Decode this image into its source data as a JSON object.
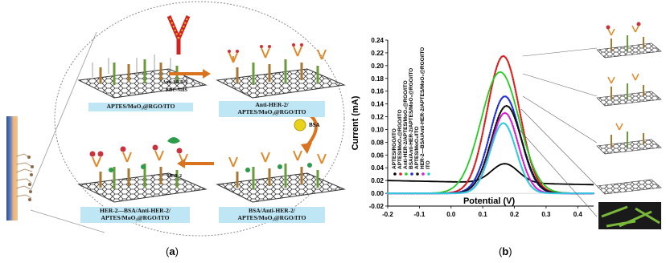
{
  "panel_a": {
    "caption_letter": "a",
    "step_labels": {
      "s1": "APTES/MoO₃@RGO/ITO",
      "s2_line1": "Anti-HER-2/",
      "s2_line2": "APTES/MoO₃@RGO/ITO",
      "s3_line1": "BSA/Anti-HER-2/",
      "s3_line2": "APTES/MoO₃@RGO/ITO",
      "s4_line1": "HER-2—BSA/Anti-HER-2/",
      "s4_line2": "APTES/MoO₃@RGO/ITO"
    },
    "arrow_labels": {
      "anti": "Anti-HER-2",
      "edc": "EDC-NHS",
      "bsa": "BSA",
      "her2": "HER-2"
    }
  },
  "panel_b": {
    "caption_letter": "b",
    "chart_data": {
      "type": "line",
      "xlabel": "Potential (V)",
      "ylabel": "Current (mA)",
      "xlim": [
        -0.2,
        0.45
      ],
      "ylim": [
        -0.02,
        0.24
      ],
      "xticks": [
        "-0.2",
        "-0.1",
        "0.0",
        "0.1",
        "0.2",
        "0.3",
        "0.4"
      ],
      "xtick_values": [
        -0.2,
        -0.1,
        0.0,
        0.1,
        0.2,
        0.3,
        0.4
      ],
      "yticks": [
        "-0.02",
        "0.00",
        "0.02",
        "0.04",
        "0.06",
        "0.08",
        "0.10",
        "0.12",
        "0.14",
        "0.16",
        "0.18",
        "0.20",
        "0.22",
        "0.24"
      ],
      "ytick_values": [
        -0.02,
        0.0,
        0.02,
        0.04,
        0.06,
        0.08,
        0.1,
        0.12,
        0.14,
        0.16,
        0.18,
        0.2,
        0.22,
        0.24
      ],
      "grid": false,
      "legend_position": "top-left",
      "series": [
        {
          "name": "APTES/RGO/ITO",
          "color": "#000000",
          "style": "solid",
          "base": 0.02,
          "peak": 0.0,
          "width": 0.06,
          "center": 0.17
        },
        {
          "name": "APTES/MoO₃@RGO/ITO",
          "color": "#dd1c1c",
          "style": "dotted",
          "base": 0.0,
          "peak": 0.215,
          "width": 0.072,
          "center": 0.165
        },
        {
          "name": "Anti-HER-2/APTES/MoO₃@RGO/ITO",
          "color": "#22cc22",
          "style": "solid",
          "base": 0.0,
          "peak": 0.19,
          "width": 0.085,
          "center": 0.155
        },
        {
          "name": "BSA/Anti-HER-2/APTES/MoO₃@RGO/ITO",
          "color": "#1f2fd8",
          "style": "dotted",
          "base": 0.0,
          "peak": 0.152,
          "width": 0.068,
          "center": 0.17
        },
        {
          "name": "APTES/MoO₃/ITO",
          "color": "#111111",
          "style": "dotted",
          "base": 0.0,
          "peak": 0.137,
          "width": 0.068,
          "center": 0.175
        },
        {
          "name": "HER-2—BSA/Anti-HER-2/APTES/MoO₃@RGO/ITO",
          "color": "#d21fd2",
          "style": "dotted",
          "base": 0.0,
          "peak": 0.126,
          "width": 0.06,
          "center": 0.17
        },
        {
          "name": "ITO",
          "color": "#2ec9e0",
          "style": "dotted",
          "base": 0.0,
          "peak": 0.11,
          "width": 0.058,
          "center": 0.165
        }
      ]
    }
  },
  "colors": {
    "accent_bluebox": "#bfe6f5",
    "arrow_orange": "#d9731f",
    "rgo_grey": "#555555",
    "moo3_green": "#4a7a2a"
  }
}
